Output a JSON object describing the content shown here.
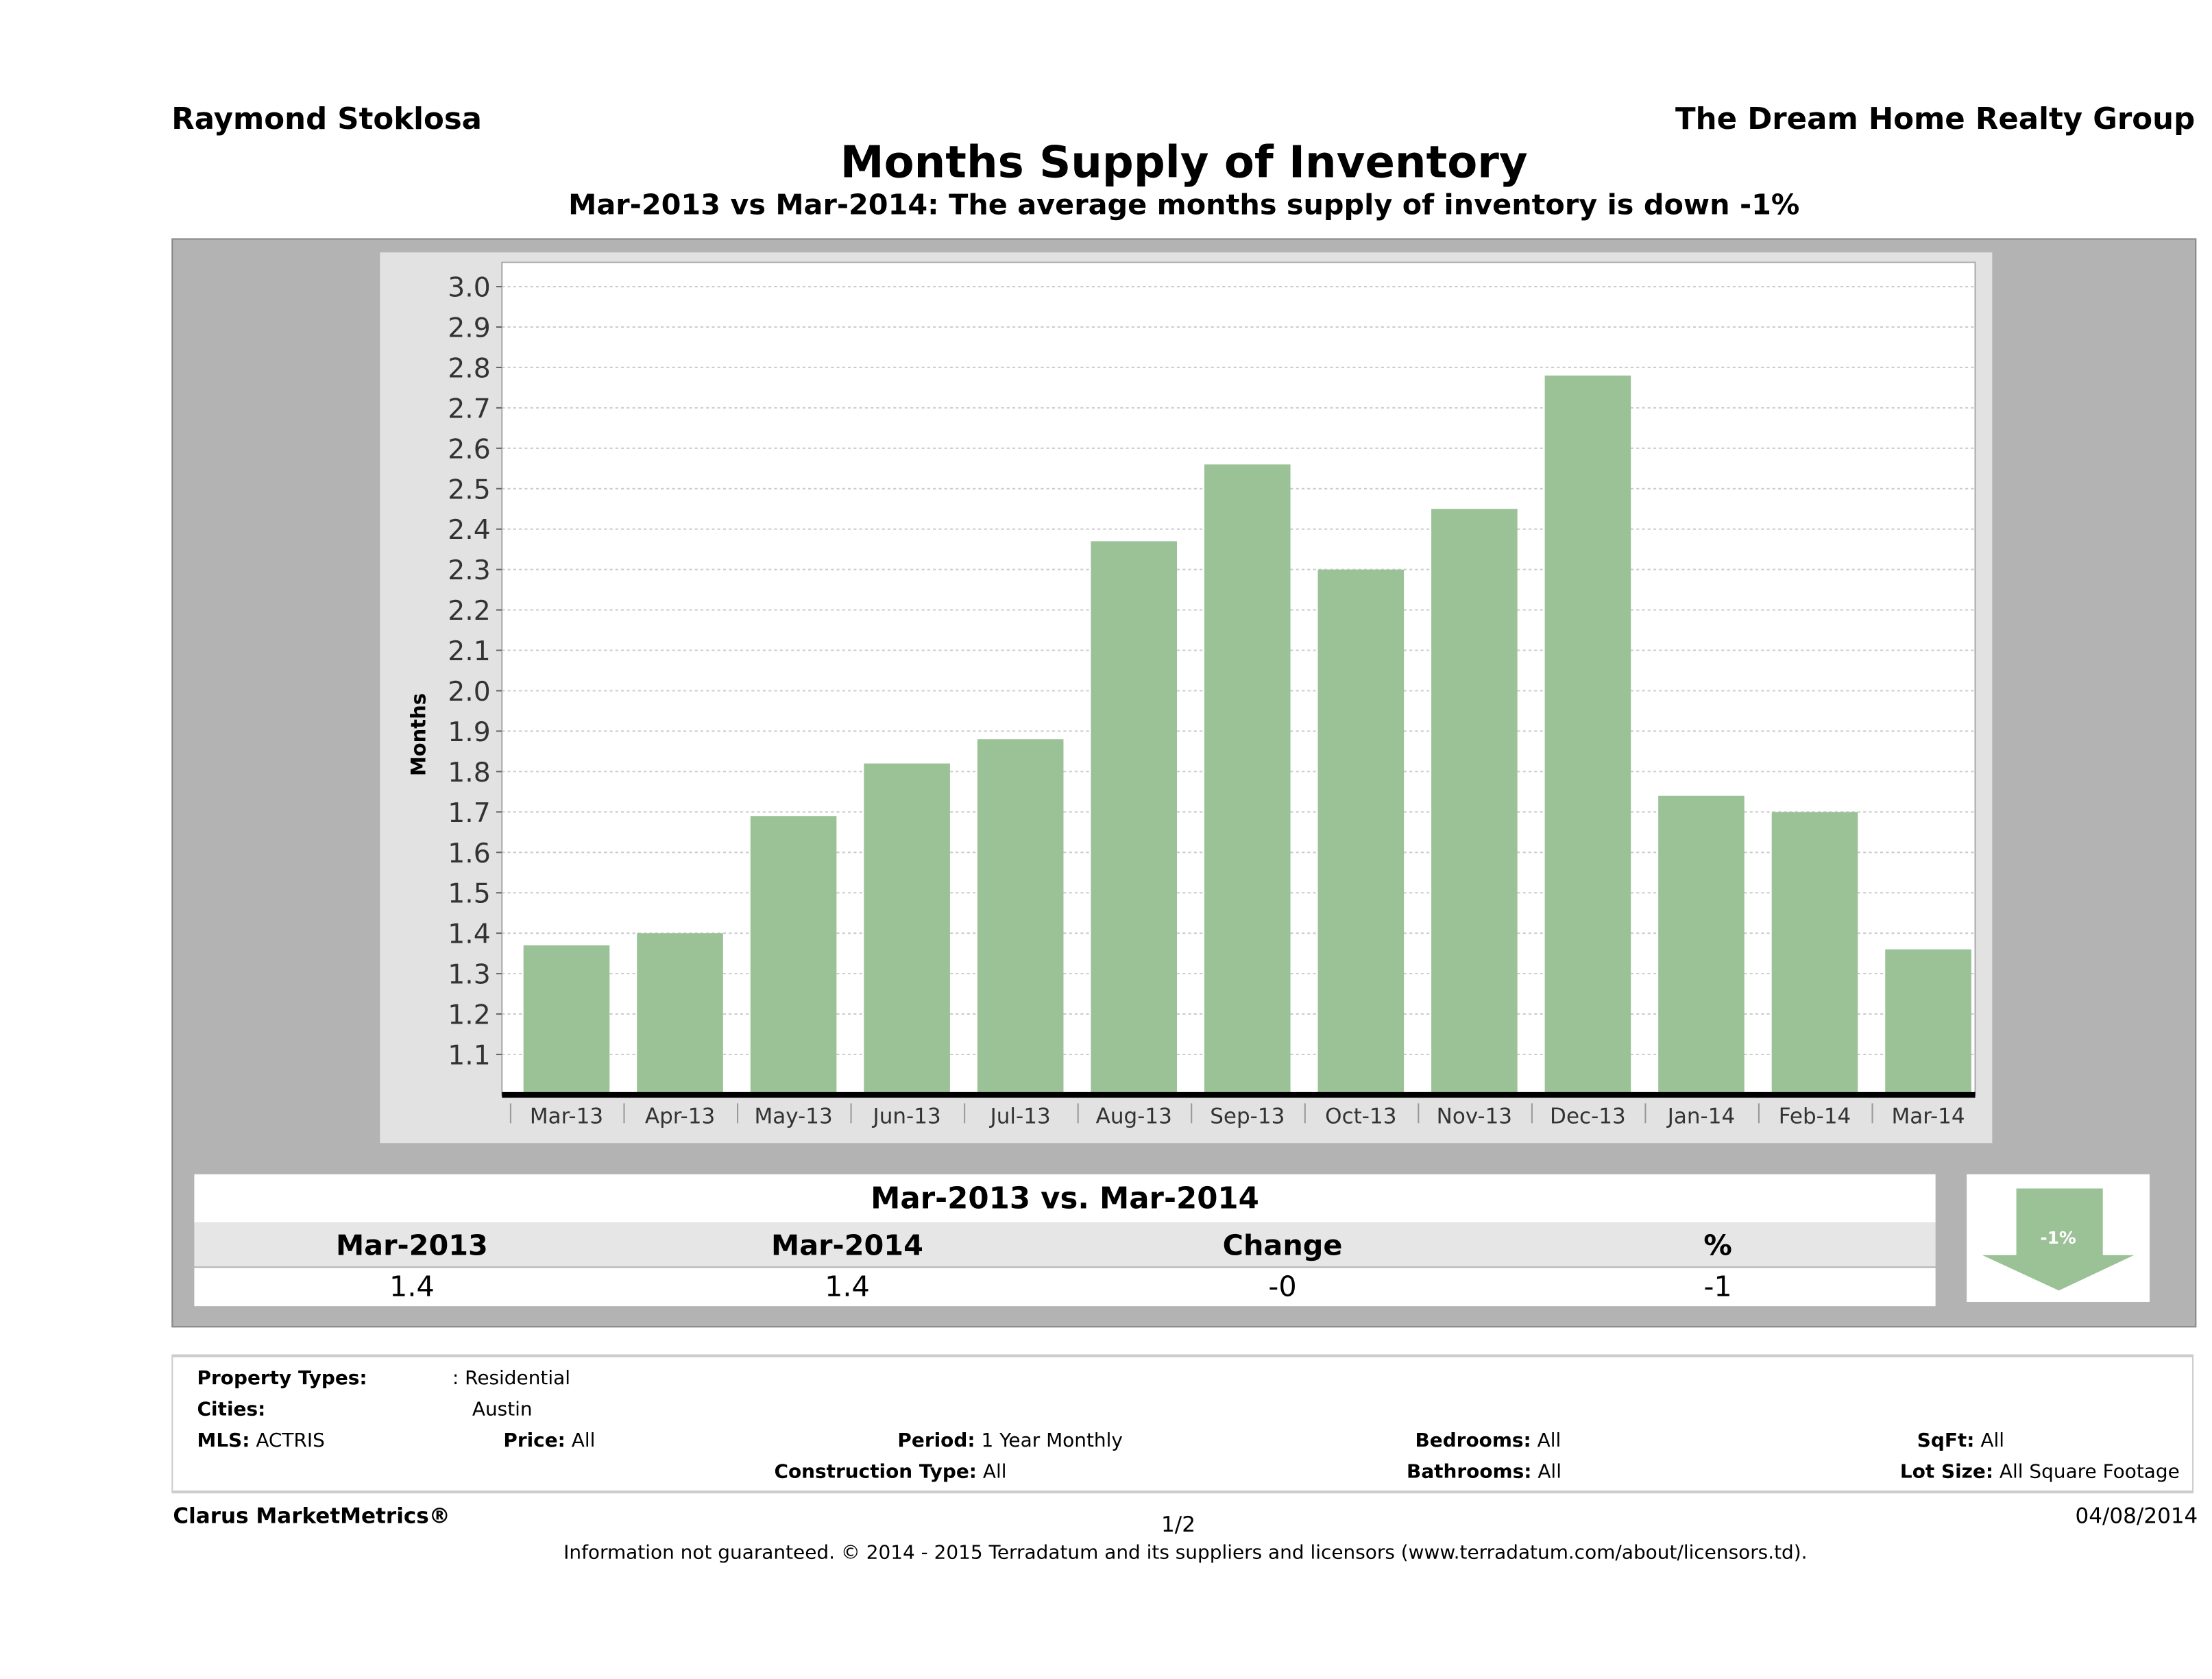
{
  "header": {
    "agent": "Raymond Stoklosa",
    "company": "The Dream Home Realty Group"
  },
  "title": "Months Supply of Inventory",
  "subtitle": "Mar-2013 vs Mar-2014: The average months supply of inventory is down -1%",
  "chart_data": {
    "type": "bar",
    "title": "Months Supply of Inventory",
    "xlabel": "",
    "ylabel": "Months",
    "categories": [
      "Mar-13",
      "Apr-13",
      "May-13",
      "Jun-13",
      "Jul-13",
      "Aug-13",
      "Sep-13",
      "Oct-13",
      "Nov-13",
      "Dec-13",
      "Jan-14",
      "Feb-14",
      "Mar-14"
    ],
    "values": [
      1.37,
      1.4,
      1.69,
      1.82,
      1.88,
      2.37,
      2.56,
      2.3,
      2.45,
      2.78,
      1.74,
      1.7,
      1.36
    ],
    "ylim": [
      1.0,
      3.06
    ],
    "yticks": [
      "1.1",
      "1.2",
      "1.3",
      "1.4",
      "1.5",
      "1.6",
      "1.7",
      "1.8",
      "1.9",
      "2.0",
      "2.1",
      "2.2",
      "2.3",
      "2.4",
      "2.5",
      "2.6",
      "2.7",
      "2.8",
      "2.9",
      "3.0"
    ],
    "grid": true,
    "bar_color": "#9bc197"
  },
  "summary": {
    "title": "Mar-2013 vs. Mar-2014",
    "headers": [
      "Mar-2013",
      "Mar-2014",
      "Change",
      "%"
    ],
    "values": [
      "1.4",
      "1.4",
      "-0",
      "-1"
    ],
    "badge": "-1%",
    "arrow": "down-arrow-icon",
    "arrow_color": "#9bc197"
  },
  "filters": {
    "property_types_label": "Property Types:",
    "property_types": ": Residential",
    "cities_label": "Cities:",
    "cities": "Austin",
    "mls_label": "MLS:",
    "mls": "ACTRIS",
    "price_label": "Price:",
    "price": "All",
    "period_label": "Period:",
    "period": "1 Year Monthly",
    "bedrooms_label": "Bedrooms:",
    "bedrooms": "All",
    "sqft_label": "SqFt:",
    "sqft": "All",
    "construction_label": "Construction Type:",
    "construction": "All",
    "bathrooms_label": "Bathrooms:",
    "bathrooms": "All",
    "lot_label": "Lot Size:",
    "lot": "All Square Footage"
  },
  "footer": {
    "brand": "Clarus MarketMetrics®",
    "page": "1/2",
    "date": "04/08/2014",
    "disclaimer": "Information not guaranteed. © 2014 - 2015 Terradatum and its suppliers and licensors (www.terradatum.com/about/licensors.td)."
  }
}
